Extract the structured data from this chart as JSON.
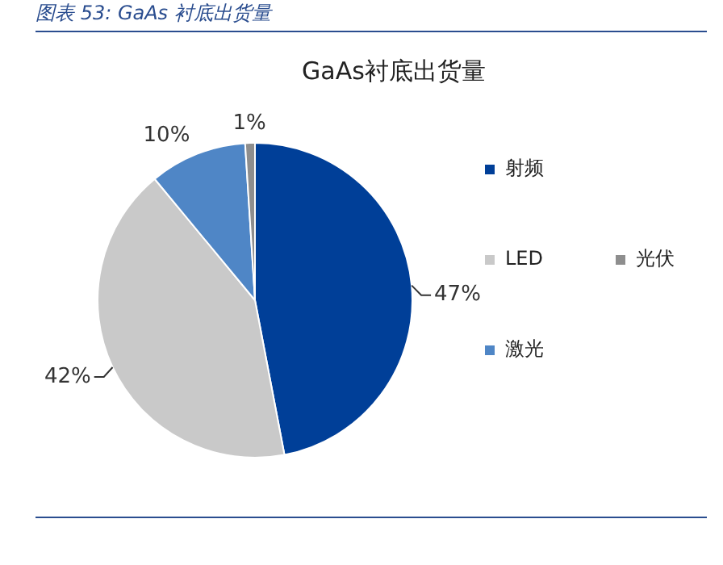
{
  "chart_data": {
    "type": "pie",
    "title": "GaAs衬底出货量",
    "annotations": [
      "图表 53:  GaAs 衬底出货量"
    ],
    "categories": [
      "射频",
      "LED",
      "激光",
      "光伏"
    ],
    "values": [
      47,
      42,
      10,
      1
    ],
    "colors": [
      "#003f98",
      "#c9c9c9",
      "#4f86c6",
      "#8e8e8e"
    ],
    "value_labels": [
      "47%",
      "42%",
      "10%",
      "1%"
    ],
    "legend": "right"
  }
}
